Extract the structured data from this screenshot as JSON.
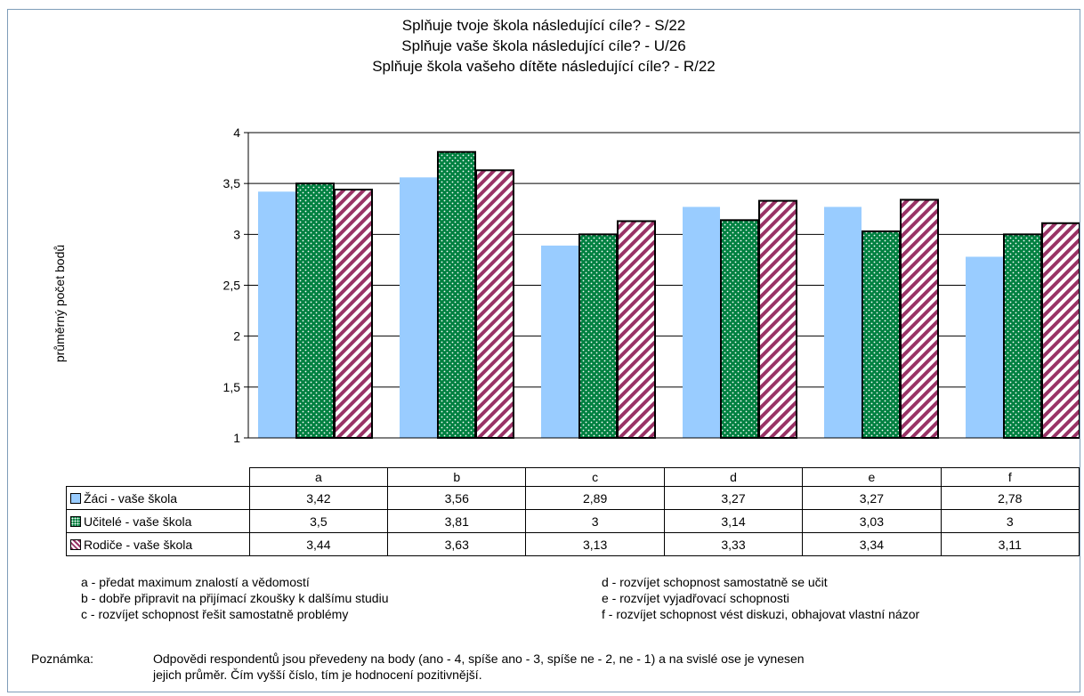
{
  "chart_data": {
    "type": "bar",
    "title_lines": [
      "Splňuje tvoje škola následující cíle? - S/22",
      "Splňuje vaše škola následující cíle? - U/26",
      "Splňuje škola vašeho dítěte následující cíle? - R/22"
    ],
    "ylabel": "průměrný počet bodů",
    "ylim": [
      1,
      4
    ],
    "yticks": [
      "1",
      "1,5",
      "2",
      "2,5",
      "3",
      "3,5",
      "4"
    ],
    "ytick_values": [
      1,
      1.5,
      2,
      2.5,
      3,
      3.5,
      4
    ],
    "categories": [
      "a",
      "b",
      "c",
      "d",
      "e",
      "f"
    ],
    "grid": true,
    "series": [
      {
        "name": "Žáci - vaše škola",
        "values": [
          3.42,
          3.56,
          2.89,
          3.27,
          3.27,
          2.78
        ],
        "labels": [
          "3,42",
          "3,56",
          "2,89",
          "3,27",
          "3,27",
          "2,78"
        ],
        "color": "#99ccff",
        "pattern": "solid"
      },
      {
        "name": "Učitelé - vaše škola",
        "values": [
          3.5,
          3.81,
          3,
          3.14,
          3.03,
          3
        ],
        "labels": [
          "3,5",
          "3,81",
          "3",
          "3,14",
          "3,03",
          "3"
        ],
        "color": "#008040",
        "pattern": "dots"
      },
      {
        "name": "Rodiče - vaše škola",
        "values": [
          3.44,
          3.63,
          3.13,
          3.33,
          3.34,
          3.11
        ],
        "labels": [
          "3,44",
          "3,63",
          "3,13",
          "3,33",
          "3,34",
          "3,11"
        ],
        "color": "#993366",
        "pattern": "stripes"
      }
    ]
  },
  "legend_notes": {
    "left": [
      "a - předat maximum znalostí a vědomostí",
      "b - dobře připravit na přijímací zkoušky k dalšímu studiu",
      "c - rozvíjet schopnost řešit samostatně problémy"
    ],
    "right": [
      "d - rozvíjet schopnost samostatně se učit",
      "e - rozvíjet vyjadřovací schopnosti",
      "f - rozvíjet schopnost vést diskuzi, obhajovat vlastní názor"
    ]
  },
  "note": {
    "label": "Poznámka:",
    "lines": [
      "Odpovědi respondentů jsou převedeny na body (ano - 4, spíše ano - 3, spíše ne - 2, ne - 1) a na svislé ose je vynesen",
      "jejich průměr. Čím vyšší číslo, tím je hodnocení pozitivnější."
    ]
  }
}
